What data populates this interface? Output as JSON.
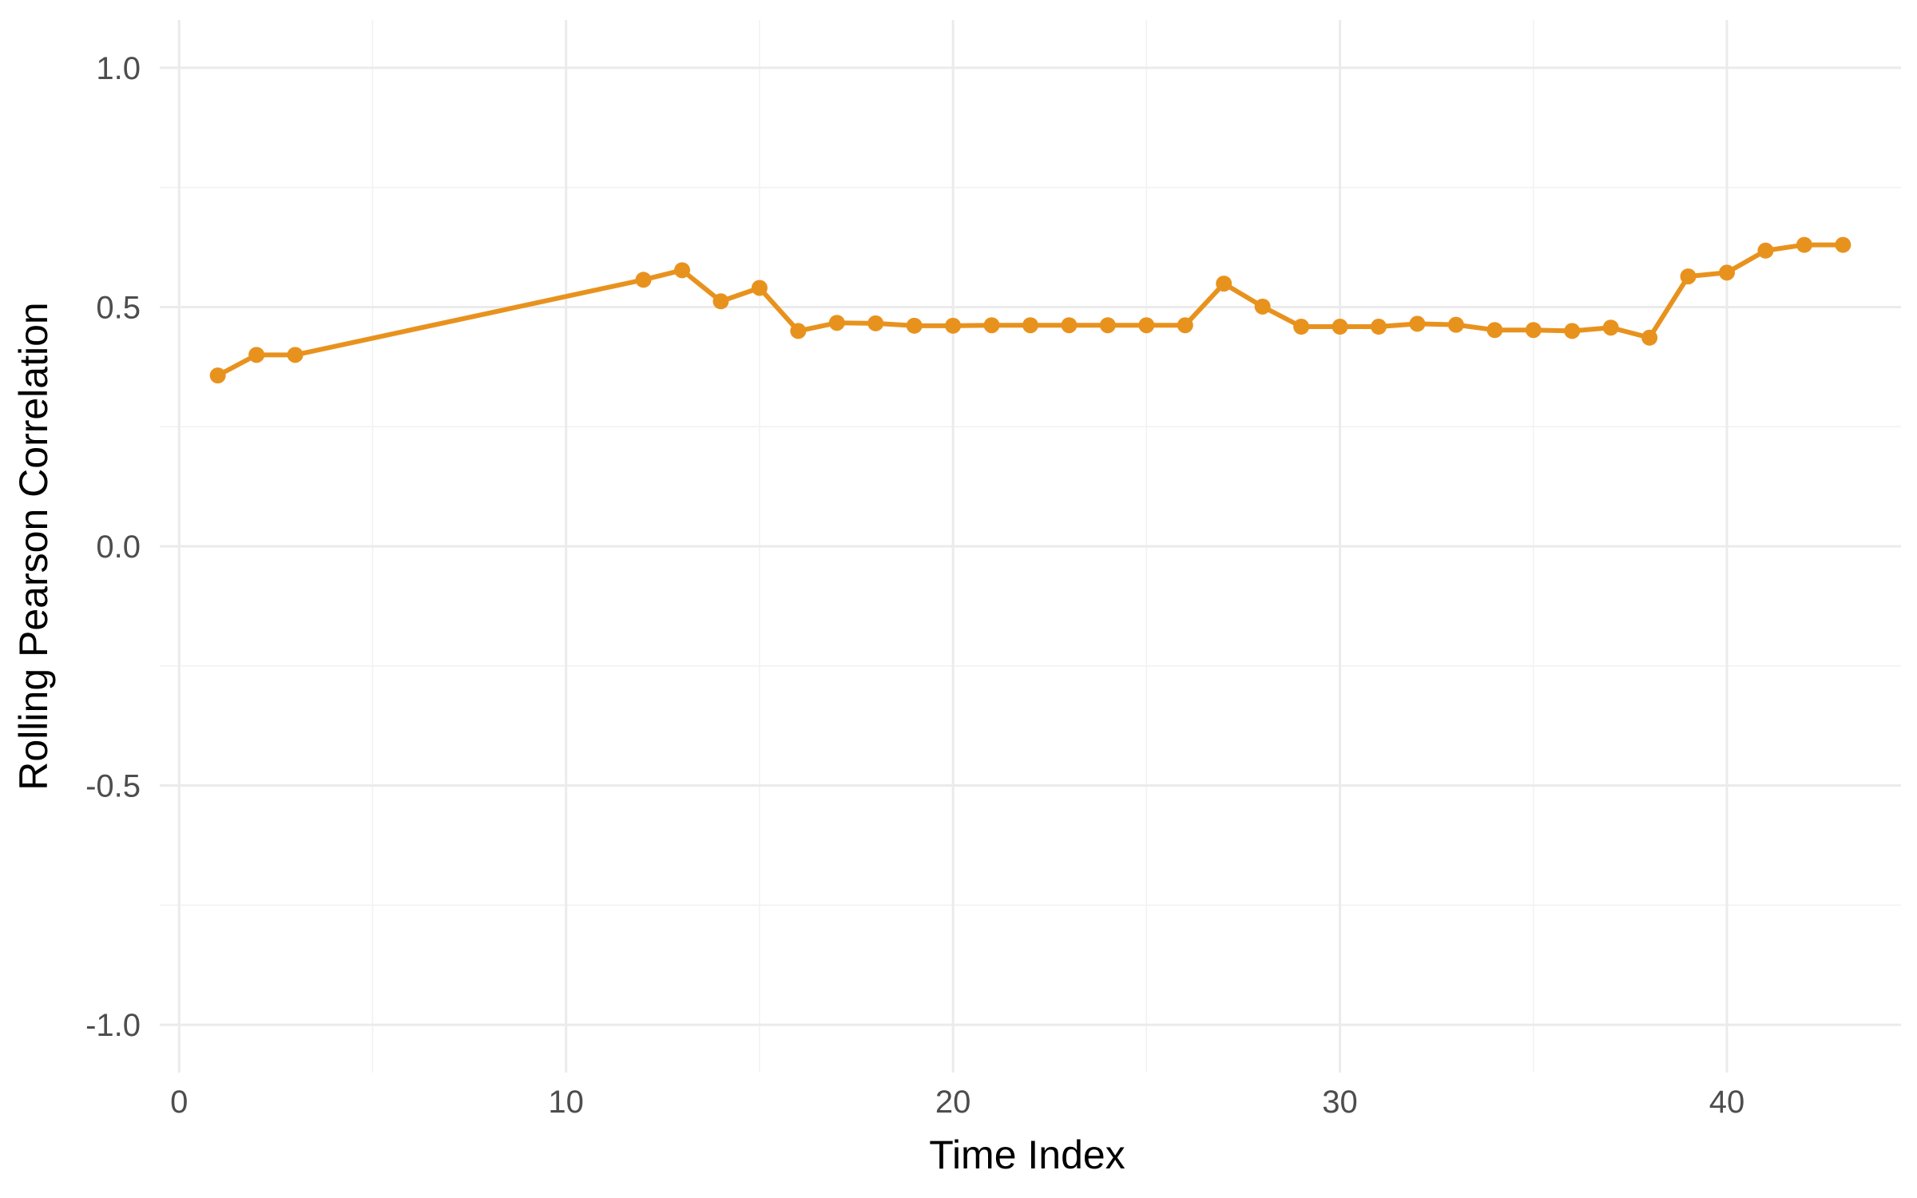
{
  "chart_data": {
    "type": "line",
    "title": "",
    "xlabel": "Time Index",
    "ylabel": "Rolling Pearson Correlation",
    "xlim": [
      -0.5,
      44.5
    ],
    "ylim": [
      -1.1,
      1.1
    ],
    "x_ticks": [
      0,
      10,
      20,
      30,
      40
    ],
    "x_tick_labels": [
      "0",
      "10",
      "20",
      "30",
      "40"
    ],
    "y_ticks": [
      -1.0,
      -0.5,
      0.0,
      0.5,
      1.0
    ],
    "y_tick_labels": [
      "-1.0",
      "-0.5",
      "0.0",
      "0.5",
      "1.0"
    ],
    "grid": true,
    "color": "#E8921E",
    "series": [
      {
        "x": [
          1,
          2,
          3,
          12,
          13,
          14,
          15,
          16,
          17,
          18,
          19,
          20,
          21,
          22,
          23,
          24,
          25,
          26,
          27,
          28,
          29,
          30,
          31,
          32,
          33,
          34,
          35,
          36,
          37,
          38,
          39,
          40,
          41,
          42,
          43
        ],
        "y": [
          0.357,
          0.4,
          0.4,
          0.557,
          0.577,
          0.512,
          0.54,
          0.45,
          0.467,
          0.466,
          0.461,
          0.461,
          0.462,
          0.462,
          0.462,
          0.462,
          0.462,
          0.462,
          0.549,
          0.501,
          0.459,
          0.459,
          0.459,
          0.465,
          0.463,
          0.452,
          0.452,
          0.45,
          0.457,
          0.436,
          0.564,
          0.572,
          0.618,
          0.63,
          0.63
        ]
      }
    ]
  }
}
